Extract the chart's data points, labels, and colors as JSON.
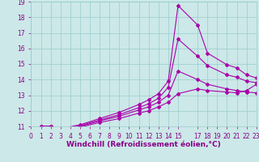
{
  "title": "",
  "xlabel": "Windchill (Refroidissement éolien,°C)",
  "ylabel": "",
  "background_color": "#cce8e8",
  "line_color": "#aa00aa",
  "grid_color": "#99cccc",
  "xlim": [
    0,
    23
  ],
  "ylim": [
    11,
    19
  ],
  "xticks": [
    0,
    1,
    2,
    3,
    4,
    5,
    6,
    7,
    8,
    9,
    10,
    11,
    12,
    13,
    14,
    15,
    17,
    18,
    19,
    20,
    21,
    22,
    23
  ],
  "yticks": [
    11,
    12,
    13,
    14,
    15,
    16,
    17,
    18,
    19
  ],
  "lines": [
    {
      "x": [
        1,
        2,
        3,
        5,
        7,
        9,
        11,
        12,
        13,
        14,
        15,
        17,
        18,
        20,
        21,
        22,
        23
      ],
      "y": [
        11,
        11,
        10.85,
        11.1,
        11.5,
        11.9,
        12.4,
        12.7,
        13.1,
        13.9,
        18.75,
        17.5,
        15.7,
        14.95,
        14.75,
        14.3,
        14.1
      ]
    },
    {
      "x": [
        1,
        2,
        3,
        5,
        7,
        9,
        11,
        12,
        13,
        14,
        15,
        17,
        18,
        20,
        21,
        22,
        23
      ],
      "y": [
        11,
        11,
        10.85,
        11.05,
        11.4,
        11.75,
        12.2,
        12.45,
        12.8,
        13.5,
        16.6,
        15.5,
        14.9,
        14.3,
        14.15,
        13.9,
        13.8
      ]
    },
    {
      "x": [
        1,
        2,
        3,
        5,
        7,
        9,
        11,
        12,
        13,
        14,
        15,
        17,
        18,
        20,
        21,
        22,
        23
      ],
      "y": [
        11,
        11,
        10.85,
        11.0,
        11.35,
        11.65,
        12.05,
        12.25,
        12.55,
        13.0,
        14.55,
        14.0,
        13.7,
        13.4,
        13.3,
        13.2,
        13.15
      ]
    },
    {
      "x": [
        1,
        2,
        3,
        5,
        7,
        9,
        11,
        12,
        13,
        14,
        15,
        17,
        18,
        20,
        21,
        22,
        23
      ],
      "y": [
        11,
        11,
        10.85,
        10.95,
        11.25,
        11.5,
        11.85,
        12.0,
        12.25,
        12.55,
        13.1,
        13.4,
        13.3,
        13.2,
        13.15,
        13.3,
        13.7
      ]
    }
  ],
  "marker": "D",
  "markersize": 2.0,
  "linewidth": 0.8,
  "xlabel_fontsize": 6.5,
  "tick_fontsize": 5.5,
  "tick_color": "#880088",
  "label_color": "#880088"
}
